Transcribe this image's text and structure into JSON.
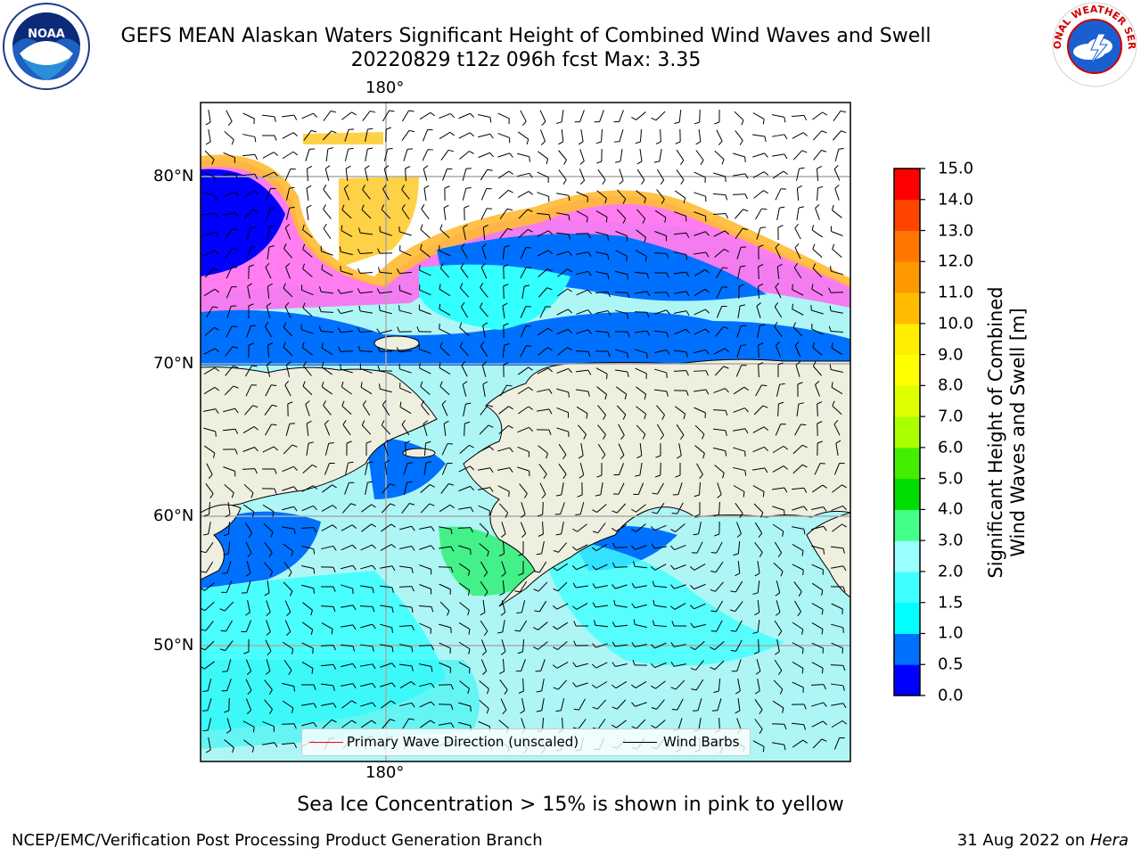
{
  "header": {
    "title_line1": "GEFS MEAN Alaskan Waters Significant Height of Combined Wind Waves and Swell",
    "title_line2": "20220829 t12z 096h fcst   Max: 3.35"
  },
  "logos": {
    "noaa_text": "NOAA",
    "nws_text": "NATIONAL WEATHER SERVICE"
  },
  "map": {
    "lon_label_top": "180°",
    "lon_label_bottom": "180°",
    "lat_labels": [
      "80°N",
      "70°N",
      "60°N",
      "50°N"
    ]
  },
  "colorbar": {
    "label_line1": "Significant Height of Combined",
    "label_line2": "Wind Waves and Swell [m]",
    "ticks": [
      "0.0",
      "0.5",
      "1.0",
      "1.5",
      "2.0",
      "3.0",
      "4.0",
      "5.0",
      "6.0",
      "7.0",
      "8.0",
      "9.0",
      "10.0",
      "11.0",
      "12.0",
      "13.0",
      "14.0",
      "15.0"
    ],
    "colors": [
      "#0000ff",
      "#0070ff",
      "#00ffff",
      "#40ffff",
      "#99ffff",
      "#44ff88",
      "#00dd00",
      "#44ee00",
      "#aaff00",
      "#ddff00",
      "#ffff00",
      "#ffee00",
      "#ffbb00",
      "#ff9900",
      "#ff7700",
      "#ff4400",
      "#ff0000"
    ]
  },
  "legend": {
    "primary_wave": "Primary Wave Direction (unscaled)",
    "wind_barbs": "Wind Barbs",
    "primary_wave_color": "#ff0000",
    "wind_barbs_color": "#000000"
  },
  "notes": {
    "sea_ice": "Sea Ice Concentration > 15% is shown in pink to yellow"
  },
  "footer": {
    "left": "NCEP/EMC/Verification Post Processing Product Generation Branch",
    "date": "31 Aug 2022 on ",
    "host": "Hera"
  }
}
